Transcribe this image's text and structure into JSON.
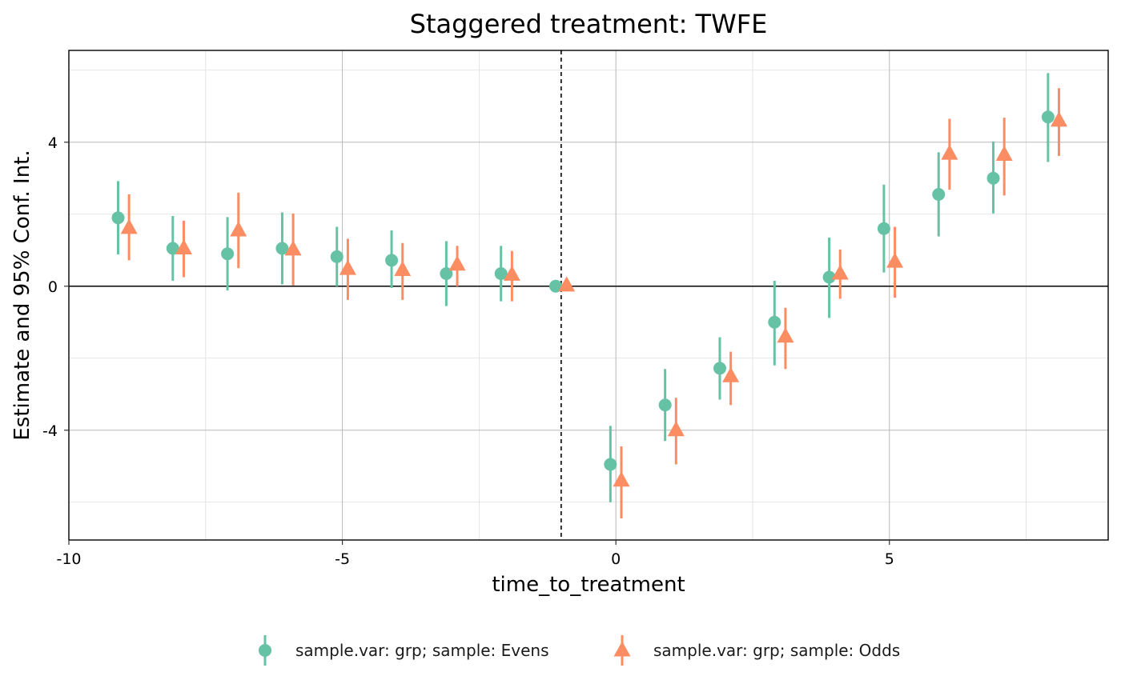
{
  "chart_data": {
    "type": "scatter",
    "title": "Staggered treatment: TWFE",
    "xlabel": "time_to_treatment",
    "ylabel": "Estimate and 95% Conf. Int.",
    "xlim": [
      -10,
      9
    ],
    "ylim": [
      -7.05,
      6.55
    ],
    "x_ticks": [
      -10,
      -5,
      0,
      5
    ],
    "x_tick_labels": [
      "-10",
      "-5",
      "0",
      "5"
    ],
    "y_ticks": [
      -4,
      0,
      4
    ],
    "y_tick_labels": [
      "-4",
      "0",
      "4"
    ],
    "grid": true,
    "reference_vline_x": -1,
    "reference_hline_y": 0,
    "legend_position": "bottom",
    "series": [
      {
        "name": "sample.var: grp; sample: Evens",
        "marker": "circle",
        "color": "#66c2a5",
        "x": [
          -9,
          -8,
          -7,
          -6,
          -5,
          -4,
          -3,
          -2,
          -1,
          0,
          1,
          2,
          3,
          4,
          5,
          6,
          7,
          8
        ],
        "estimate": [
          1.9,
          1.05,
          0.9,
          1.05,
          0.82,
          0.72,
          0.35,
          0.35,
          0.0,
          -4.95,
          -3.3,
          -2.28,
          -1.0,
          0.25,
          1.6,
          2.55,
          3.0,
          4.7
        ],
        "ci_low": [
          0.88,
          0.15,
          -0.12,
          0.05,
          0.0,
          -0.05,
          -0.55,
          -0.42,
          0.0,
          -6.0,
          -4.3,
          -3.15,
          -2.2,
          -0.88,
          0.38,
          1.38,
          2.02,
          3.45
        ],
        "ci_high": [
          2.92,
          1.95,
          1.92,
          2.05,
          1.65,
          1.55,
          1.25,
          1.12,
          0.0,
          -3.88,
          -2.3,
          -1.42,
          0.15,
          1.35,
          2.82,
          3.72,
          4.02,
          5.92
        ]
      },
      {
        "name": "sample.var: grp; sample: Odds",
        "marker": "triangle",
        "color": "#fc8d62",
        "x": [
          -9,
          -8,
          -7,
          -6,
          -5,
          -4,
          -3,
          -2,
          -1,
          0,
          1,
          2,
          3,
          4,
          5,
          6,
          7,
          8
        ],
        "estimate": [
          1.62,
          1.05,
          1.55,
          1.02,
          0.48,
          0.45,
          0.6,
          0.32,
          0.02,
          -5.4,
          -4.0,
          -2.5,
          -1.4,
          0.35,
          0.68,
          3.68,
          3.65,
          4.6
        ],
        "ci_low": [
          0.72,
          0.25,
          0.5,
          0.02,
          -0.38,
          -0.38,
          0.0,
          -0.42,
          0.02,
          -6.45,
          -4.95,
          -3.3,
          -2.3,
          -0.35,
          -0.32,
          2.68,
          2.52,
          3.62
        ],
        "ci_high": [
          2.55,
          1.82,
          2.6,
          2.02,
          1.32,
          1.2,
          1.12,
          0.98,
          0.02,
          -4.45,
          -3.1,
          -1.82,
          -0.6,
          1.02,
          1.65,
          4.65,
          4.68,
          5.5
        ]
      }
    ]
  }
}
